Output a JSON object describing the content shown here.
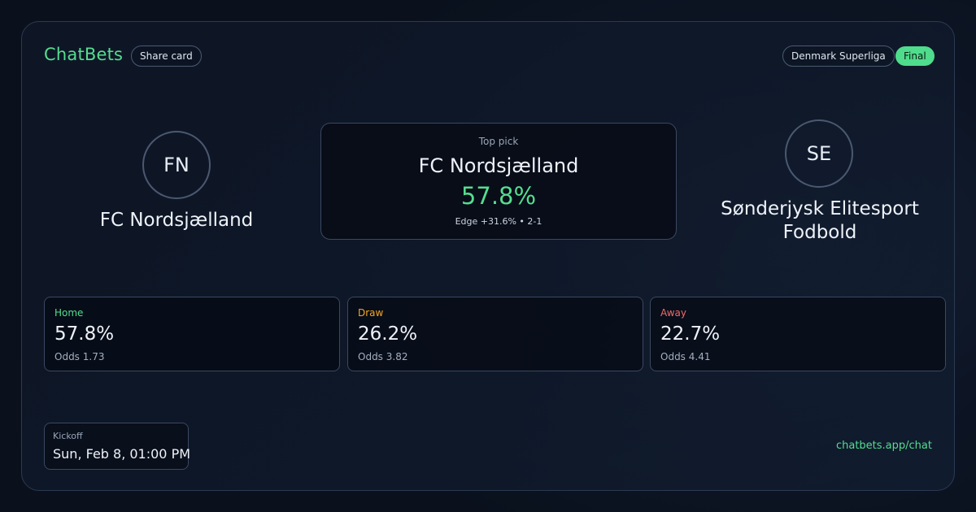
{
  "header": {
    "brand": "ChatBets",
    "share_label": "Share card",
    "league": "Denmark Superliga",
    "status": "Final"
  },
  "match": {
    "home": {
      "initials": "FN",
      "name": "FC Nordsjælland"
    },
    "away": {
      "initials": "SE",
      "name": "Sønderjysk Elitesport Fodbold"
    }
  },
  "top_pick": {
    "label": "Top pick",
    "team": "FC Nordsjælland",
    "probability": "57.8%",
    "edge": "Edge +31.6% • 2-1"
  },
  "stats": {
    "home": {
      "label": "Home",
      "probability": "57.8%",
      "odds": "Odds 1.73"
    },
    "draw": {
      "label": "Draw",
      "probability": "26.2%",
      "odds": "Odds 3.82"
    },
    "away": {
      "label": "Away",
      "probability": "22.7%",
      "odds": "Odds 4.41"
    }
  },
  "kickoff": {
    "label": "Kickoff",
    "value": "Sun, Feb 8, 01:00 PM"
  },
  "footer": {
    "link": "chatbets.app/chat"
  },
  "colors": {
    "accent": "#55dd8f",
    "draw": "#f5a623",
    "away": "#f06a6a",
    "background": "#0b1220"
  }
}
